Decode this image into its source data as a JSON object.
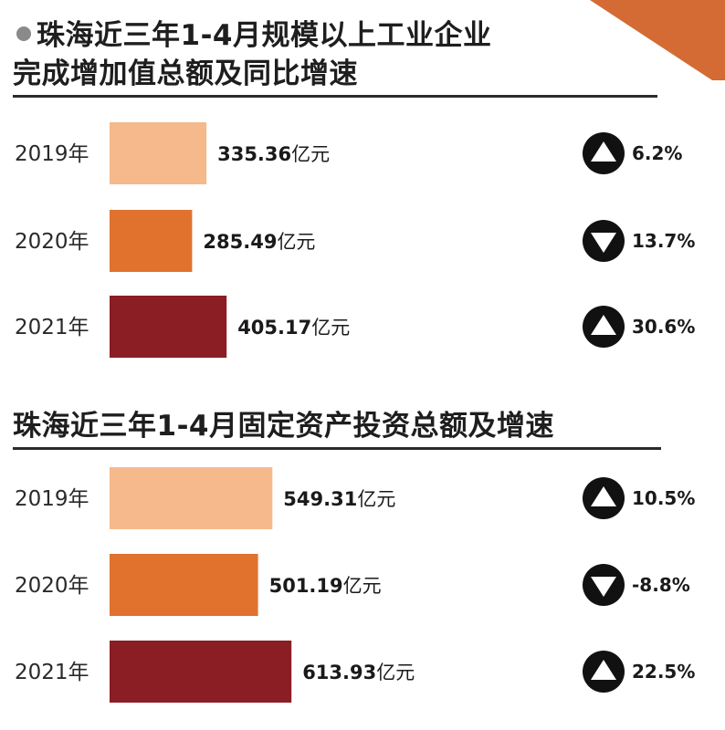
{
  "colors": {
    "bar_2019": "#f6b98c",
    "bar_2020": "#e0722e",
    "bar_2021": "#8b1e24",
    "accent_corner": "#d46a34",
    "rule": "#2b2b2b",
    "icon": "#111111"
  },
  "unit": "亿元",
  "chart_data": [
    {
      "type": "bar",
      "orientation": "horizontal",
      "title": "珠海近三年1-4月规模以上工业企业完成增加值总额及同比增速",
      "title_lines": [
        "珠海近三年1-4月规模以上工业企业",
        "完成增加值总额及同比增速"
      ],
      "categories": [
        "2019年",
        "2020年",
        "2021年"
      ],
      "values": [
        335.36,
        285.49,
        405.17
      ],
      "value_labels": [
        "335.36",
        "285.49",
        "405.17"
      ],
      "growth": [
        "6.2%",
        "13.7%",
        "30.6%"
      ],
      "growth_direction": [
        "up",
        "down",
        "up"
      ]
    },
    {
      "type": "bar",
      "orientation": "horizontal",
      "title": "珠海近三年1-4月固定资产投资总额及增速",
      "title_lines": [
        "珠海近三年1-4月固定资产投资总额及增速"
      ],
      "categories": [
        "2019年",
        "2020年",
        "2021年"
      ],
      "values": [
        549.31,
        501.19,
        613.93
      ],
      "value_labels": [
        "549.31",
        "501.19",
        "613.93"
      ],
      "growth": [
        "10.5%",
        "-8.8%",
        "22.5%"
      ],
      "growth_direction": [
        "up",
        "down",
        "up"
      ]
    }
  ]
}
